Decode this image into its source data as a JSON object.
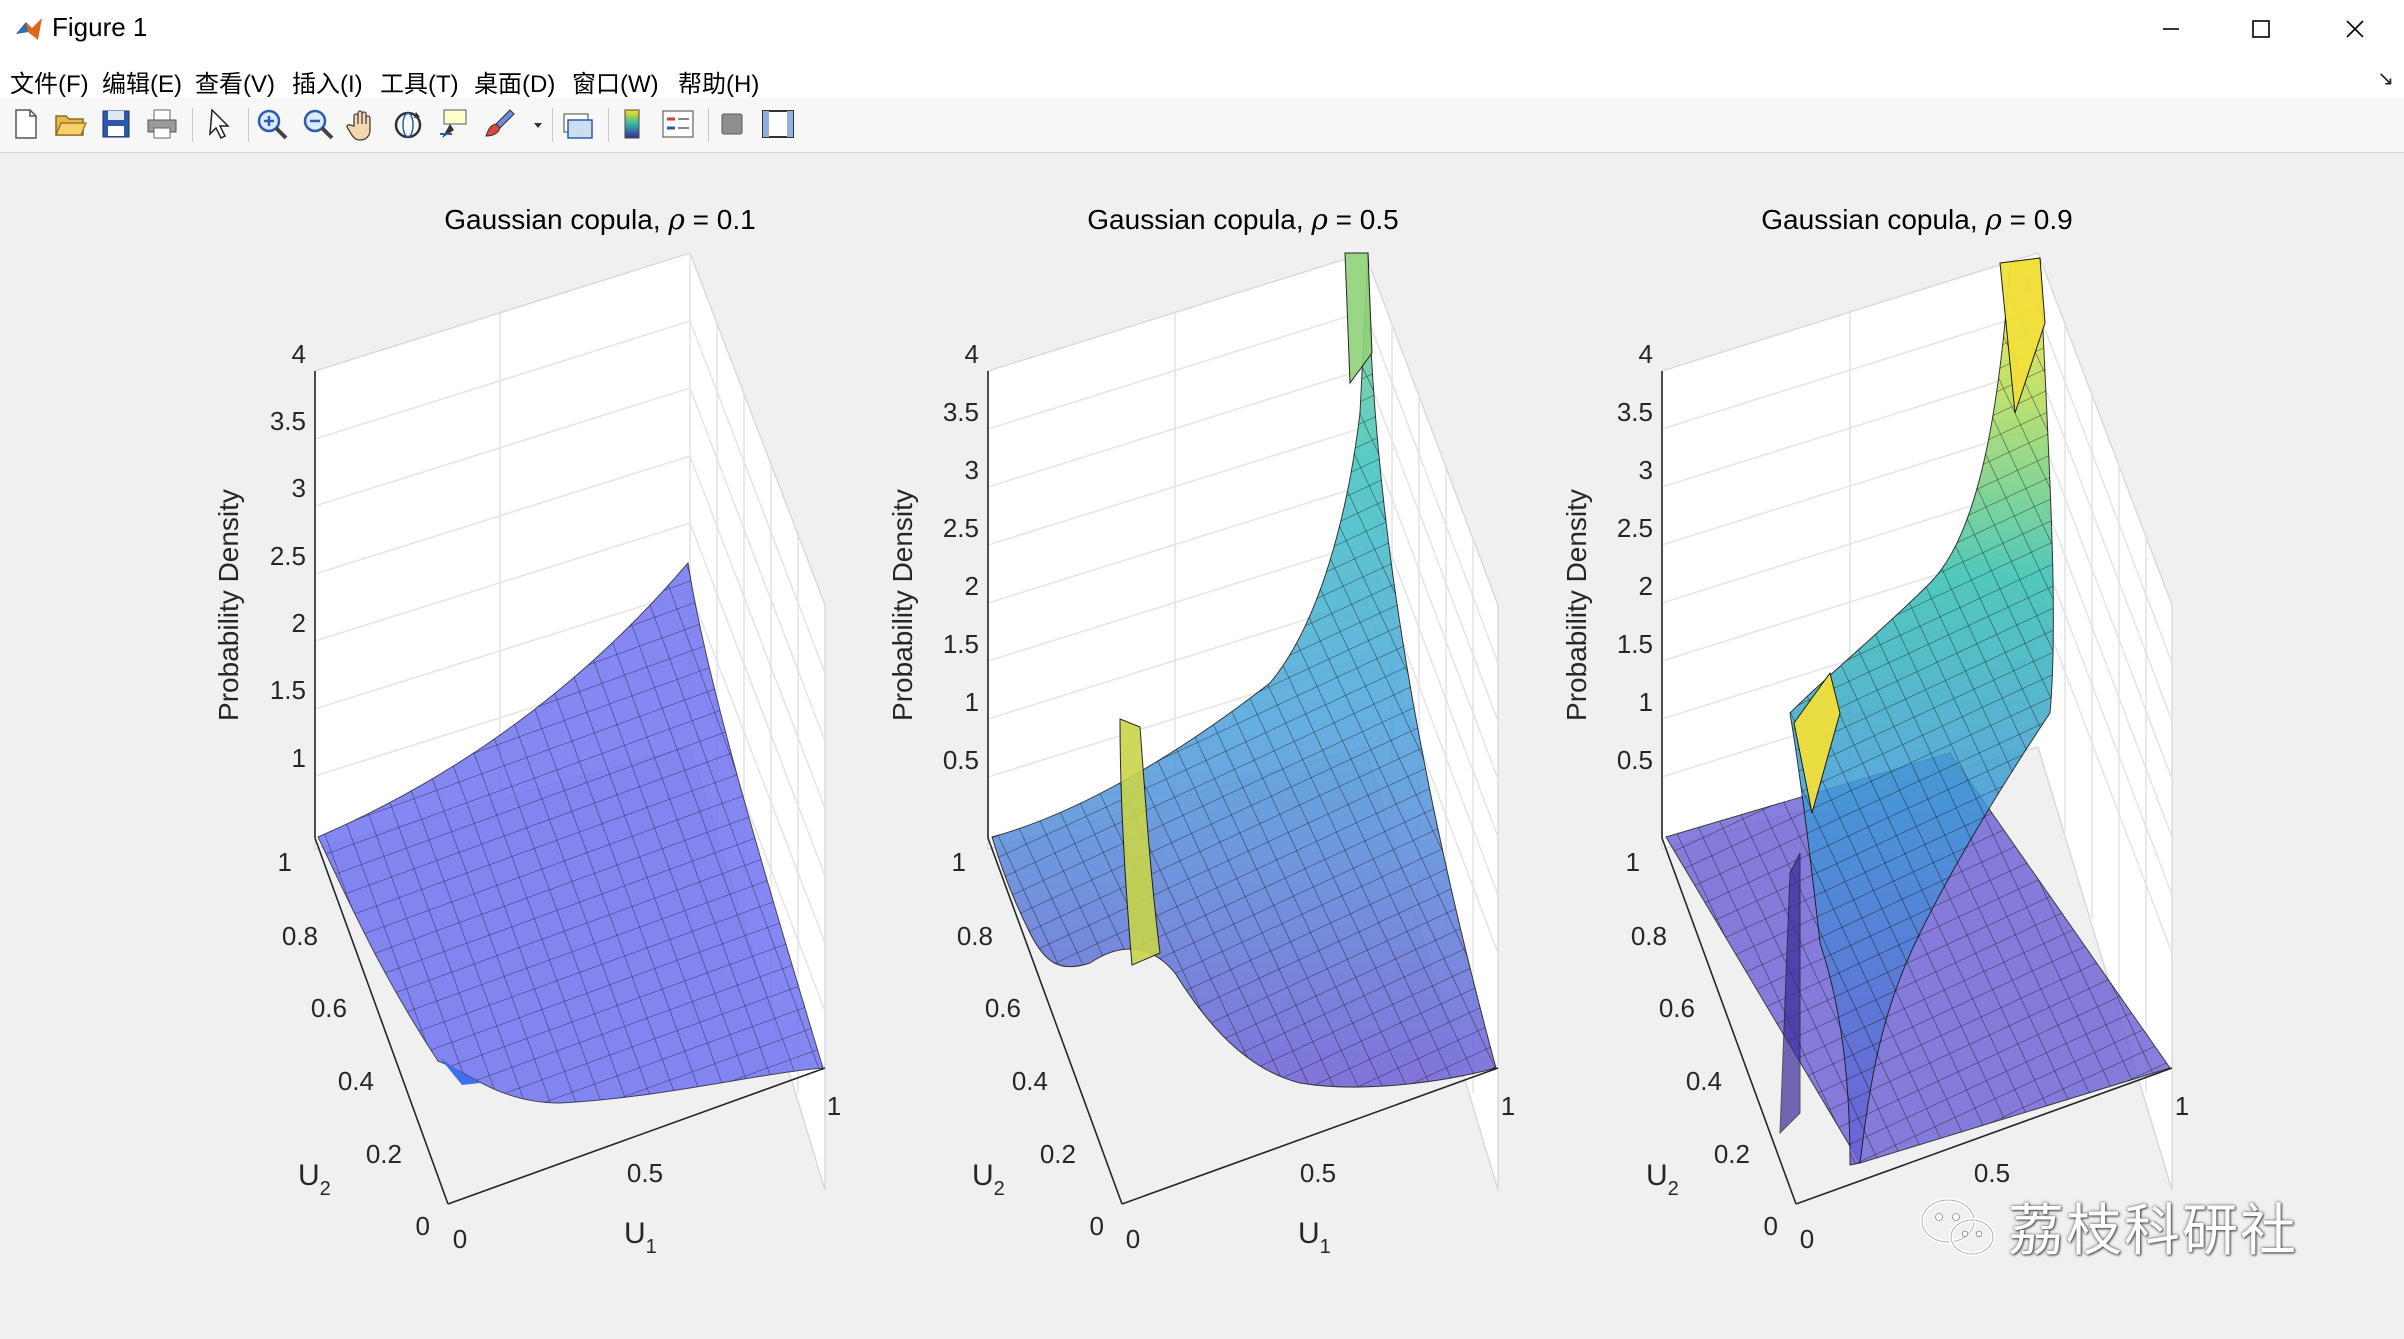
{
  "window": {
    "title": "Figure 1",
    "accent": "#e0661b"
  },
  "menu": {
    "items": [
      {
        "label": "文件(F)"
      },
      {
        "label": "编辑(E)"
      },
      {
        "label": "查看(V)"
      },
      {
        "label": "插入(I)"
      },
      {
        "label": "工具(T)"
      },
      {
        "label": "桌面(D)"
      },
      {
        "label": "窗口(W)"
      },
      {
        "label": "帮助(H)"
      }
    ]
  },
  "toolbar": {
    "icons": [
      "new-figure-icon",
      "open-file-icon",
      "save-icon",
      "print-icon",
      "select-arrow-icon",
      "zoom-in-icon",
      "zoom-out-icon",
      "pan-hand-icon",
      "rotate-3d-icon",
      "data-cursor-icon",
      "brush-icon",
      "link-plot-icon",
      "colorbar-icon",
      "legend-icon",
      "hide-plot-tools-icon",
      "show-plot-tools-icon"
    ]
  },
  "plots": [
    {
      "title_prefix": "Gaussian copula, ",
      "rho_symbol": "ρ",
      "title_suffix": " = 0.1",
      "rho": 0.1,
      "zlabel": "Probability Density",
      "xlabel": "U",
      "xlabel_sub": "1",
      "ylabel": "U",
      "ylabel_sub": "2",
      "zticks": [
        "4",
        "3.5",
        "3",
        "2.5",
        "2",
        "1.5",
        "1"
      ],
      "yticks": [
        "1",
        "0.8",
        "0.6",
        "0.4",
        "0.2",
        "0"
      ],
      "xticks": [
        "0",
        "0.5",
        "1"
      ]
    },
    {
      "title_prefix": "Gaussian copula, ",
      "rho_symbol": "ρ",
      "title_suffix": " = 0.5",
      "rho": 0.5,
      "zlabel": "Probability Density",
      "xlabel": "U",
      "xlabel_sub": "1",
      "ylabel": "U",
      "ylabel_sub": "2",
      "zticks": [
        "4",
        "3.5",
        "3",
        "2.5",
        "2",
        "1.5",
        "1",
        "0.5"
      ],
      "yticks": [
        "1",
        "0.8",
        "0.6",
        "0.4",
        "0.2",
        "0"
      ],
      "xticks": [
        "0",
        "0.5",
        "1"
      ]
    },
    {
      "title_prefix": "Gaussian copula, ",
      "rho_symbol": "ρ",
      "title_suffix": " = 0.9",
      "rho": 0.9,
      "zlabel": "Probability Density",
      "xlabel": "U",
      "xlabel_sub": "1",
      "ylabel": "U",
      "ylabel_sub": "2",
      "zticks": [
        "4",
        "3.5",
        "3",
        "2.5",
        "2",
        "1.5",
        "1",
        "0.5"
      ],
      "yticks": [
        "1",
        "0.8",
        "0.6",
        "0.4",
        "0.2",
        "0"
      ],
      "xticks": [
        "0",
        "0.5",
        "1"
      ]
    }
  ],
  "watermark": {
    "text": "荔枝科研社"
  }
}
